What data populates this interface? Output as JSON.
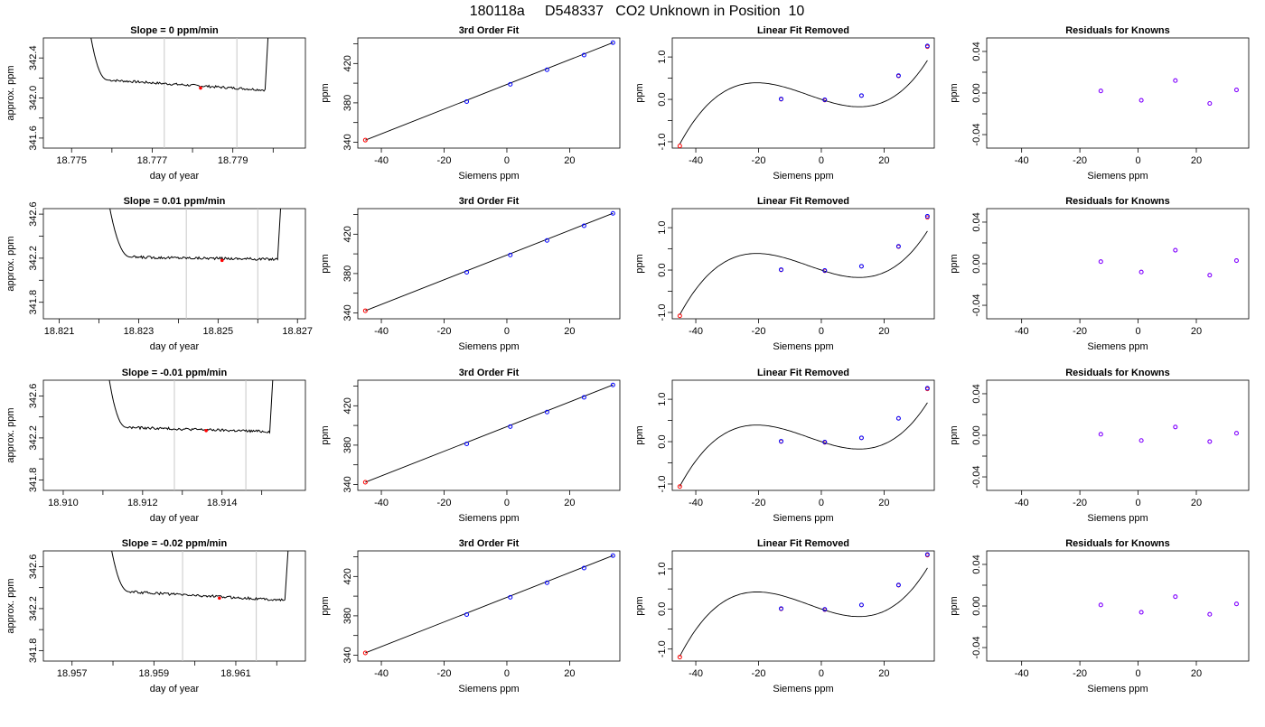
{
  "figure_title": "180118a     D548337   CO2 Unknown in Position  10",
  "colors": {
    "line": "#000000",
    "known": "#0000ff",
    "unknown": "#ff0000",
    "residual": "#8000ff",
    "window": "#c8c8c8"
  },
  "chart_data": [
    {
      "type": "line",
      "title": "Slope =  0  ppm/min",
      "xlabel": "day of year",
      "ylabel": "approx. ppm",
      "xlim": [
        18.7743,
        18.7808
      ],
      "ylim": [
        341.5,
        342.6
      ],
      "xticks": [
        18.775,
        18.777,
        18.779
      ],
      "xtick_labels": [
        "18.775",
        "18.777",
        "18.779"
      ],
      "xminor": [
        18.776,
        18.778,
        18.78
      ],
      "yticks": [
        341.6,
        342.0,
        342.4
      ],
      "ytick_labels": [
        "341.6",
        "342.0",
        "342.4"
      ],
      "ymid": [
        341.8,
        342.2
      ],
      "window": [
        18.7773,
        18.7791
      ],
      "trace": {
        "x_start": 18.7754,
        "x_plateau_start": 18.7759,
        "plateau_start": 342.18,
        "plateau_end": 342.08,
        "x_end": 18.7798,
        "x_drop": 18.7799,
        "noise": 0.012,
        "top": 342.8
      },
      "unknown_point": {
        "x": 18.7782,
        "y": 342.1
      }
    },
    {
      "type": "scatter",
      "title": "3rd Order Fit",
      "xlabel": "Siemens ppm",
      "ylabel": "ppm",
      "xlim": [
        -47.5,
        36
      ],
      "ylim": [
        334,
        446
      ],
      "xticks": [
        -40,
        -20,
        0,
        20
      ],
      "xtick_labels": [
        "-40",
        "-20",
        "0",
        "20"
      ],
      "yticks": [
        340,
        380,
        420
      ],
      "ytick_labels": [
        "340",
        "380",
        "420"
      ],
      "ymid": [
        360,
        400,
        440
      ],
      "fit_line": {
        "x": [
          -45.1,
          33.8
        ],
        "y": [
          342.1,
          441.2
        ]
      },
      "knowns": {
        "x": [
          -12.8,
          1.1,
          12.8,
          24.6,
          33.8
        ],
        "y": [
          381.3,
          398.8,
          413.6,
          428.6,
          441.2
        ]
      },
      "unknown": {
        "x": -45.1,
        "y": 342.1
      }
    },
    {
      "type": "line",
      "title": "Linear Fit Removed",
      "xlabel": "Siemens ppm",
      "ylabel": "ppm",
      "xlim": [
        -47.5,
        36
      ],
      "ylim": [
        -1.15,
        1.45
      ],
      "xticks": [
        -40,
        -20,
        0,
        20
      ],
      "xtick_labels": [
        "-40",
        "-20",
        "0",
        "20"
      ],
      "yticks": [
        -1.0,
        0.0,
        1.0
      ],
      "ytick_labels": [
        "-1.0",
        "0.0",
        "1.0"
      ],
      "ymid": [
        -0.5,
        0.5
      ],
      "curve_x_range": [
        -45.1,
        33.8
      ],
      "curve_coefficients": [
        -0.0243,
        0.000418,
        1.12e-06,
        3.16e-05
      ],
      "knowns": {
        "x": [
          -12.8,
          1.1,
          12.8,
          24.6,
          33.8
        ],
        "y": [
          0.01,
          -0.01,
          0.09,
          0.56,
          1.26
        ]
      },
      "knowns_fit": {
        "x": [
          -12.8,
          1.1,
          12.8,
          24.6,
          33.8
        ],
        "y": [
          0.0,
          -0.02,
          0.09,
          0.55,
          1.24
        ]
      },
      "unknown": {
        "x": -45.1,
        "y": -1.1
      }
    },
    {
      "type": "scatter",
      "title": "Residuals for Knowns",
      "xlabel": "Siemens ppm",
      "ylabel": "ppm",
      "xlim": [
        -52,
        38
      ],
      "ylim": [
        -0.053,
        0.053
      ],
      "xticks": [
        -40,
        -20,
        0,
        20
      ],
      "xtick_labels": [
        "-40",
        "-20",
        "0",
        "20"
      ],
      "yticks": [
        -0.04,
        0.0,
        0.04
      ],
      "ytick_labels": [
        "-0.04",
        "0.00",
        "0.04"
      ],
      "ymid": [
        -0.02,
        0.02
      ],
      "residuals": {
        "x": [
          -12.8,
          1.1,
          12.8,
          24.6,
          33.8
        ],
        "y": [
          0.002,
          -0.007,
          0.012,
          -0.01,
          0.003
        ]
      }
    },
    {
      "type": "line",
      "title": "Slope =  0.01  ppm/min",
      "xlabel": "day of year",
      "ylabel": "approx. ppm",
      "xlim": [
        18.8206,
        18.8272
      ],
      "ylim": [
        341.65,
        342.65
      ],
      "xticks": [
        18.821,
        18.823,
        18.825,
        18.827
      ],
      "xtick_labels": [
        "18.821",
        "18.823",
        "18.825",
        "18.827"
      ],
      "xminor": [
        18.822,
        18.824,
        18.826
      ],
      "yticks": [
        341.8,
        342.2,
        342.6
      ],
      "ytick_labels": [
        "341.8",
        "342.2",
        "342.6"
      ],
      "ymid": [
        342.0,
        342.4
      ],
      "window": [
        18.8242,
        18.826
      ],
      "trace": {
        "x_start": 18.8222,
        "x_plateau_start": 18.8228,
        "plateau_start": 342.21,
        "plateau_end": 342.19,
        "x_end": 18.8265,
        "x_drop": 18.8266,
        "noise": 0.012,
        "top": 342.8
      },
      "unknown_point": {
        "x": 18.8251,
        "y": 342.18
      }
    },
    {
      "type": "scatter",
      "title": "3rd Order Fit",
      "xlabel": "Siemens ppm",
      "ylabel": "ppm",
      "xlim": [
        -47.5,
        36
      ],
      "ylim": [
        334,
        446
      ],
      "xticks": [
        -40,
        -20,
        0,
        20
      ],
      "xtick_labels": [
        "-40",
        "-20",
        "0",
        "20"
      ],
      "yticks": [
        340,
        380,
        420
      ],
      "ytick_labels": [
        "340",
        "380",
        "420"
      ],
      "ymid": [
        360,
        400,
        440
      ],
      "fit_line": {
        "x": [
          -45.1,
          33.8
        ],
        "y": [
          342.2,
          441.2
        ]
      },
      "knowns": {
        "x": [
          -12.8,
          1.1,
          12.8,
          24.6,
          33.8
        ],
        "y": [
          381.3,
          398.8,
          413.6,
          428.6,
          441.2
        ]
      },
      "unknown": {
        "x": -45.1,
        "y": 342.2
      }
    },
    {
      "type": "line",
      "title": "Linear Fit Removed",
      "xlabel": "Siemens ppm",
      "ylabel": "ppm",
      "xlim": [
        -47.5,
        36
      ],
      "ylim": [
        -1.15,
        1.45
      ],
      "xticks": [
        -40,
        -20,
        0,
        20
      ],
      "xtick_labels": [
        "-40",
        "-20",
        "0",
        "20"
      ],
      "yticks": [
        -1.0,
        0.0,
        1.0
      ],
      "ytick_labels": [
        "-1.0",
        "0.0",
        "1.0"
      ],
      "ymid": [
        -0.5,
        0.5
      ],
      "curve_x_range": [
        -45.1,
        33.8
      ],
      "curve_coefficients": [
        -0.0243,
        0.000418,
        1.12e-06,
        3.16e-05
      ],
      "knowns": {
        "x": [
          -12.8,
          1.1,
          12.8,
          24.6,
          33.8
        ],
        "y": [
          0.01,
          -0.01,
          0.09,
          0.56,
          1.27
        ]
      },
      "knowns_fit": {
        "x": [
          -12.8,
          1.1,
          12.8,
          24.6,
          33.8
        ],
        "y": [
          0.0,
          -0.02,
          0.09,
          0.55,
          1.24
        ]
      },
      "unknown": {
        "x": -45.1,
        "y": -1.08
      }
    },
    {
      "type": "scatter",
      "title": "Residuals for Knowns",
      "xlabel": "Siemens ppm",
      "ylabel": "ppm",
      "xlim": [
        -52,
        38
      ],
      "ylim": [
        -0.053,
        0.053
      ],
      "xticks": [
        -40,
        -20,
        0,
        20
      ],
      "xtick_labels": [
        "-40",
        "-20",
        "0",
        "20"
      ],
      "yticks": [
        -0.04,
        0.0,
        0.04
      ],
      "ytick_labels": [
        "-0.04",
        "0.00",
        "0.04"
      ],
      "ymid": [
        -0.02,
        0.02
      ],
      "residuals": {
        "x": [
          -12.8,
          1.1,
          12.8,
          24.6,
          33.8
        ],
        "y": [
          0.002,
          -0.008,
          0.013,
          -0.011,
          0.003
        ]
      }
    },
    {
      "type": "line",
      "title": "Slope =  -0.01  ppm/min",
      "xlabel": "day of year",
      "ylabel": "approx. ppm",
      "xlim": [
        18.9095,
        18.9161
      ],
      "ylim": [
        341.7,
        342.75
      ],
      "xticks": [
        18.91,
        18.912,
        18.914
      ],
      "xtick_labels": [
        "18.910",
        "18.912",
        "18.914"
      ],
      "xminor": [
        18.911,
        18.913,
        18.915
      ],
      "yticks": [
        341.8,
        342.2,
        342.6
      ],
      "ytick_labels": [
        "341.8",
        "342.2",
        "342.6"
      ],
      "ymid": [
        342.0,
        342.4
      ],
      "window": [
        18.9128,
        18.9146
      ],
      "trace": {
        "x_start": 18.9111,
        "x_plateau_start": 18.9116,
        "plateau_start": 342.3,
        "plateau_end": 342.26,
        "x_end": 18.9152,
        "x_drop": 18.9153,
        "noise": 0.012,
        "top": 342.9
      },
      "unknown_point": {
        "x": 18.9136,
        "y": 342.27
      }
    },
    {
      "type": "scatter",
      "title": "3rd Order Fit",
      "xlabel": "Siemens ppm",
      "ylabel": "ppm",
      "xlim": [
        -47.5,
        36
      ],
      "ylim": [
        334,
        446
      ],
      "xticks": [
        -40,
        -20,
        0,
        20
      ],
      "xtick_labels": [
        "-40",
        "-20",
        "0",
        "20"
      ],
      "yticks": [
        340,
        380,
        420
      ],
      "ytick_labels": [
        "340",
        "380",
        "420"
      ],
      "ymid": [
        360,
        400,
        440
      ],
      "fit_line": {
        "x": [
          -45.1,
          33.8
        ],
        "y": [
          342.3,
          441.2
        ]
      },
      "knowns": {
        "x": [
          -12.8,
          1.1,
          12.8,
          24.6,
          33.8
        ],
        "y": [
          381.3,
          398.8,
          413.6,
          428.6,
          441.2
        ]
      },
      "unknown": {
        "x": -45.1,
        "y": 342.3
      }
    },
    {
      "type": "line",
      "title": "Linear Fit Removed",
      "xlabel": "Siemens ppm",
      "ylabel": "ppm",
      "xlim": [
        -47.5,
        36
      ],
      "ylim": [
        -1.15,
        1.45
      ],
      "xticks": [
        -40,
        -20,
        0,
        20
      ],
      "xtick_labels": [
        "-40",
        "-20",
        "0",
        "20"
      ],
      "yticks": [
        -1.0,
        0.0,
        1.0
      ],
      "ytick_labels": [
        "-1.0",
        "0.0",
        "1.0"
      ],
      "ymid": [
        -0.5,
        0.5
      ],
      "curve_x_range": [
        -45.1,
        33.8
      ],
      "curve_coefficients": [
        -0.0243,
        0.000418,
        1.12e-06,
        3.16e-05
      ],
      "knowns": {
        "x": [
          -12.8,
          1.1,
          12.8,
          24.6,
          33.8
        ],
        "y": [
          0.01,
          -0.01,
          0.09,
          0.55,
          1.26
        ]
      },
      "knowns_fit": {
        "x": [
          -12.8,
          1.1,
          12.8,
          24.6,
          33.8
        ],
        "y": [
          0.0,
          -0.02,
          0.09,
          0.55,
          1.24
        ]
      },
      "unknown": {
        "x": -45.1,
        "y": -1.06
      }
    },
    {
      "type": "scatter",
      "title": "Residuals for Knowns",
      "xlabel": "Siemens ppm",
      "ylabel": "ppm",
      "xlim": [
        -52,
        38
      ],
      "ylim": [
        -0.053,
        0.053
      ],
      "xticks": [
        -40,
        -20,
        0,
        20
      ],
      "xtick_labels": [
        "-40",
        "-20",
        "0",
        "20"
      ],
      "yticks": [
        -0.04,
        0.0,
        0.04
      ],
      "ytick_labels": [
        "-0.04",
        "0.00",
        "0.04"
      ],
      "ymid": [
        -0.02,
        0.02
      ],
      "residuals": {
        "x": [
          -12.8,
          1.1,
          12.8,
          24.6,
          33.8
        ],
        "y": [
          0.001,
          -0.005,
          0.008,
          -0.006,
          0.002
        ]
      }
    },
    {
      "type": "line",
      "title": "Slope =  -0.02  ppm/min",
      "xlabel": "day of year",
      "ylabel": "approx. ppm",
      "xlim": [
        18.9563,
        18.9627
      ],
      "ylim": [
        341.7,
        342.75
      ],
      "xticks": [
        18.957,
        18.959,
        18.961
      ],
      "xtick_labels": [
        "18.957",
        "18.959",
        "18.961"
      ],
      "xminor": [
        18.958,
        18.96,
        18.962
      ],
      "yticks": [
        341.8,
        342.2,
        342.6
      ],
      "ytick_labels": [
        "341.8",
        "342.2",
        "342.6"
      ],
      "ymid": [
        342.0,
        342.4
      ],
      "window": [
        18.9597,
        18.9615
      ],
      "trace": {
        "x_start": 18.9579,
        "x_plateau_start": 18.9584,
        "plateau_start": 342.36,
        "plateau_end": 342.28,
        "x_end": 18.9622,
        "x_drop": 18.9623,
        "noise": 0.012,
        "top": 342.9
      },
      "unknown_point": {
        "x": 18.9606,
        "y": 342.3
      }
    },
    {
      "type": "scatter",
      "title": "3rd Order Fit",
      "xlabel": "Siemens ppm",
      "ylabel": "ppm",
      "xlim": [
        -47.5,
        36
      ],
      "ylim": [
        334,
        446
      ],
      "xticks": [
        -40,
        -20,
        0,
        20
      ],
      "xtick_labels": [
        "-40",
        "-20",
        "0",
        "20"
      ],
      "yticks": [
        340,
        380,
        420
      ],
      "ytick_labels": [
        "340",
        "380",
        "420"
      ],
      "ymid": [
        360,
        400,
        440
      ],
      "fit_line": {
        "x": [
          -45.1,
          33.8
        ],
        "y": [
          342.3,
          441.2
        ]
      },
      "knowns": {
        "x": [
          -12.8,
          1.1,
          12.8,
          24.6,
          33.8
        ],
        "y": [
          381.3,
          398.8,
          413.6,
          428.6,
          441.2
        ]
      },
      "unknown": {
        "x": -45.1,
        "y": 342.3
      }
    },
    {
      "type": "line",
      "title": "Linear Fit Removed",
      "xlabel": "Siemens ppm",
      "ylabel": "ppm",
      "xlim": [
        -47.5,
        36
      ],
      "ylim": [
        -1.3,
        1.45
      ],
      "xticks": [
        -40,
        -20,
        0,
        20
      ],
      "xtick_labels": [
        "-40",
        "-20",
        "0",
        "20"
      ],
      "yticks": [
        -1.0,
        0.0,
        1.0
      ],
      "ytick_labels": [
        "-1.0",
        "0.0",
        "1.0"
      ],
      "ymid": [
        -0.5,
        0.5
      ],
      "curve_x_range": [
        -45.1,
        33.8
      ],
      "curve_coefficients": [
        -0.0265,
        0.00046,
        1.5e-06,
        3.46e-05
      ],
      "knowns": {
        "x": [
          -12.8,
          1.1,
          12.8,
          24.6,
          33.8
        ],
        "y": [
          0.01,
          -0.01,
          0.1,
          0.6,
          1.36
        ]
      },
      "knowns_fit": {
        "x": [
          -12.8,
          1.1,
          12.8,
          24.6,
          33.8
        ],
        "y": [
          0.0,
          -0.02,
          0.1,
          0.59,
          1.34
        ]
      },
      "unknown": {
        "x": -45.1,
        "y": -1.2
      }
    },
    {
      "type": "scatter",
      "title": "Residuals for Knowns",
      "xlabel": "Siemens ppm",
      "ylabel": "ppm",
      "xlim": [
        -52,
        38
      ],
      "ylim": [
        -0.053,
        0.053
      ],
      "xticks": [
        -40,
        -20,
        0,
        20
      ],
      "xtick_labels": [
        "-40",
        "-20",
        "0",
        "20"
      ],
      "yticks": [
        -0.04,
        0.0,
        0.04
      ],
      "ytick_labels": [
        "-0.04",
        "0.00",
        "0.04"
      ],
      "ymid": [
        -0.02,
        0.02
      ],
      "residuals": {
        "x": [
          -12.8,
          1.1,
          12.8,
          24.6,
          33.8
        ],
        "y": [
          0.001,
          -0.006,
          0.009,
          -0.008,
          0.002
        ]
      }
    }
  ]
}
